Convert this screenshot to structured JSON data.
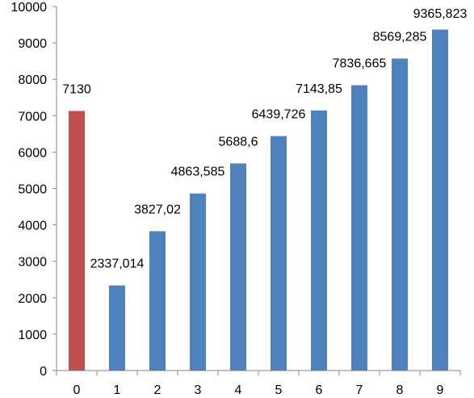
{
  "chart_data": {
    "type": "bar",
    "categories": [
      "0",
      "1",
      "2",
      "3",
      "4",
      "5",
      "6",
      "7",
      "8",
      "9"
    ],
    "values": [
      7130,
      2337.014,
      3827.02,
      4863.585,
      5688.6,
      6439.726,
      7143.85,
      7836.665,
      8569.285,
      9365.823
    ],
    "data_labels": [
      "7130",
      "2337,014",
      "3827,02",
      "4863,585",
      "5688,6",
      "6439,726",
      "7143,85",
      "7836,665",
      "8569,285",
      "9365,823"
    ],
    "bar_colors": [
      "#c0504d",
      "#4f81bd",
      "#4f81bd",
      "#4f81bd",
      "#4f81bd",
      "#4f81bd",
      "#4f81bd",
      "#4f81bd",
      "#4f81bd",
      "#4f81bd"
    ],
    "ylim": [
      0,
      10000
    ],
    "yticks": [
      "0",
      "1000",
      "2000",
      "3000",
      "4000",
      "5000",
      "6000",
      "7000",
      "8000",
      "9000",
      "10000"
    ],
    "title": "",
    "xlabel": "",
    "ylabel": "",
    "grid": false,
    "legend": false
  }
}
